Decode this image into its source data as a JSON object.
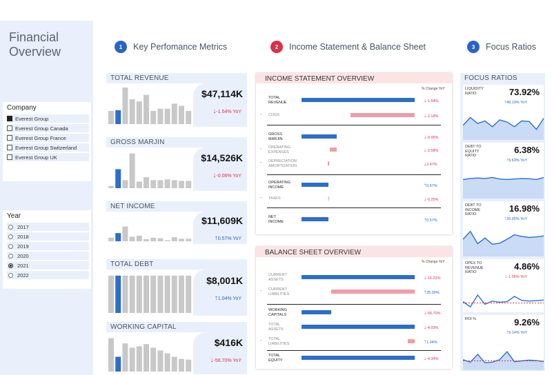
{
  "colors": {
    "accent_blue": "#2d6dcb",
    "accent_pink": "#ee9ea7",
    "negative": "#d9304a",
    "positive": "#2563c0",
    "panel_bg": "#e9f0fb",
    "badge_blue": "#2a63c6",
    "badge_red": "#d8314b"
  },
  "app": {
    "title_line1": "Financial",
    "title_line2": "Overview"
  },
  "company_slicer": {
    "title": "Company",
    "options": [
      {
        "label": "Everest Group",
        "checked": true
      },
      {
        "label": "Everest Group Canada",
        "checked": false
      },
      {
        "label": "Everest Group France",
        "checked": false
      },
      {
        "label": "Everest Group Switzerland",
        "checked": false
      },
      {
        "label": "Everest Group UK",
        "checked": false
      }
    ]
  },
  "year_slicer": {
    "title": "Year",
    "options": [
      {
        "label": "2017",
        "selected": false
      },
      {
        "label": "2018",
        "selected": false
      },
      {
        "label": "2019",
        "selected": false
      },
      {
        "label": "2020",
        "selected": false
      },
      {
        "label": "2021",
        "selected": true
      },
      {
        "label": "2022",
        "selected": false
      }
    ]
  },
  "sections": [
    {
      "number": "1",
      "title": "Key Perfomance Metrics",
      "color": "#2a63c6"
    },
    {
      "number": "2",
      "title": "Income Statement & Balance Sheet",
      "color": "#d8314b"
    },
    {
      "number": "3",
      "title": "Focus Ratios",
      "color": "#2a63c6"
    }
  ],
  "kpis": [
    {
      "title": "TOTAL REVENUE",
      "value": "$47,114K",
      "yoy": "-1.54% YoY",
      "direction": "down",
      "highlight_index": 1,
      "bars": [
        0.36,
        0.38,
        1.0,
        0.68,
        0.62,
        0.8,
        0.36,
        0.42,
        0.42,
        0.56,
        0.5,
        0.36
      ]
    },
    {
      "title": "GROSS MARJIN",
      "value": "$14,526K",
      "yoy": "-0.06% YoY",
      "direction": "down",
      "highlight_index": 1,
      "bars": [
        0.06,
        0.52,
        0.22,
        0.95,
        0.18,
        0.3,
        0.22,
        0.22,
        0.24,
        0.22,
        0.2,
        0.2
      ]
    },
    {
      "title": "NET INCOME",
      "value": "$11,609K",
      "yoy": "0.57% YoY",
      "direction": "up",
      "highlight_index": 1,
      "bars": [
        0.14,
        0.32,
        0.58,
        0.18,
        0.22,
        0.08,
        0.14,
        0.12,
        0.04,
        0.16,
        0.1,
        0.1
      ]
    },
    {
      "title": "TOTAL DEBT",
      "value": "$8,001K",
      "yoy": "1.04% YoY",
      "direction": "up",
      "highlight_index": 1,
      "bars": [
        0.95,
        0.95,
        0.95,
        0.95,
        0.95,
        0.95,
        0.95,
        0.95,
        0.95,
        0.95,
        0.95,
        0.95
      ]
    },
    {
      "title": "WORKING CAPITAL",
      "value": "$416K",
      "yoy": "-56.70% YoY",
      "direction": "down",
      "highlight_index": 1,
      "bars": [
        0.95,
        0.42,
        0.8,
        0.68,
        0.72,
        0.78,
        0.68,
        0.6,
        0.52,
        0.42,
        0.36,
        0.34
      ]
    }
  ],
  "income_statement": {
    "title": "INCOME STATEMENT OVERVIEW",
    "pct_header": "% Change YoY",
    "rows": [
      {
        "label_lines": [
          "TOTAL",
          "REVENUE"
        ],
        "sub": false,
        "dash": false,
        "bar_color": "blue",
        "bar_start": 0.0,
        "bar_end": 1.0,
        "pct": "-1.54%",
        "direction": "down"
      },
      {
        "label_lines": [
          "COGS"
        ],
        "sub": true,
        "dash": true,
        "bar_color": "pink",
        "bar_start": 0.43,
        "bar_end": 1.0,
        "pct": "-2.18%",
        "direction": "down"
      },
      {
        "label_lines": [
          "GROSS",
          "MARJIN"
        ],
        "sub": false,
        "dash": false,
        "bar_color": "blue",
        "bar_start": 0.0,
        "bar_end": 0.31,
        "pct": "-0.06%",
        "direction": "down"
      },
      {
        "label_lines": [
          "OPERATING",
          "EXPENSES"
        ],
        "sub": true,
        "dash": true,
        "bar_color": "pink",
        "bar_start": 0.25,
        "bar_end": 0.31,
        "pct": "-2.58%",
        "direction": "down"
      },
      {
        "label_lines": [
          "DEPRECIATION",
          "AMORTIZATION"
        ],
        "sub": true,
        "dash": true,
        "bar_color": "pink",
        "bar_start": 0.23,
        "bar_end": 0.245,
        "pct": "2.47%",
        "direction": "down"
      },
      {
        "label_lines": [
          "OPERATING",
          "INCOME"
        ],
        "sub": false,
        "dash": false,
        "bar_color": "blue",
        "bar_start": 0.0,
        "bar_end": 0.24,
        "pct": "0.57%",
        "direction": "up"
      },
      {
        "label_lines": [
          "TAXES"
        ],
        "sub": true,
        "dash": true,
        "bar_color": "pink",
        "bar_start": 0.238,
        "bar_end": 0.243,
        "pct": "-0.25%",
        "direction": "down"
      },
      {
        "label_lines": [
          "NET",
          "INCOME"
        ],
        "sub": false,
        "dash": false,
        "bar_color": "blue",
        "bar_start": 0.0,
        "bar_end": 0.24,
        "pct": "0.57%",
        "direction": "up"
      }
    ]
  },
  "balance_sheet": {
    "title": "BALANCE SHEET OVERVIEW",
    "pct_header": "% Change YoY",
    "rows": [
      {
        "label_lines": [
          "CURRENT",
          "ASSETS"
        ],
        "sub": true,
        "dash": false,
        "bar_color": "blue",
        "bar_start": 0.0,
        "bar_end": 1.0,
        "pct": "-16.22%",
        "direction": "down"
      },
      {
        "label_lines": [
          "CURRENT",
          "LIABILITIES"
        ],
        "sub": true,
        "dash": true,
        "bar_color": "pink",
        "bar_start": 0.26,
        "bar_end": 1.0,
        "pct": "25.00%",
        "direction": "up"
      },
      {
        "label_lines": [
          "WORKING",
          "CAPITALS"
        ],
        "sub": false,
        "dash": false,
        "bar_color": "blue",
        "bar_start": 0.0,
        "bar_end": 0.26,
        "pct": "-56.70%",
        "direction": "down"
      },
      {
        "label_lines": [
          "TOTAL",
          "ASSETS"
        ],
        "sub": true,
        "dash": false,
        "bar_color": "blue",
        "bar_start": 0.0,
        "bar_end": 1.0,
        "pct": "-4.03%",
        "direction": "down"
      },
      {
        "label_lines": [
          "TOTAL",
          "LIABILITIES"
        ],
        "sub": true,
        "dash": true,
        "bar_color": "pink",
        "bar_start": 0.94,
        "bar_end": 1.0,
        "pct": "1.04%",
        "direction": "up"
      },
      {
        "label_lines": [
          "TOTAL",
          "EQUITY"
        ],
        "sub": false,
        "dash": false,
        "bar_color": "blue",
        "bar_start": 0.0,
        "bar_end": 1.0,
        "pct": "-4.34%",
        "direction": "down"
      }
    ]
  },
  "focus_ratios": {
    "title": "FOCUS RATIOS",
    "cards": [
      {
        "label_lines": [
          "LIQUIDITY",
          "RATIO"
        ],
        "value": "73.92%",
        "yoy": "49.19% YoY",
        "direction": "up",
        "style": "area",
        "points": [
          0.45,
          0.75,
          0.52,
          0.62,
          0.4,
          0.66,
          0.58,
          0.4,
          0.62,
          0.6,
          0.3,
          0.72
        ]
      },
      {
        "label_lines": [
          "DEBT TO",
          "EQUITY",
          "RATIO"
        ],
        "value": "6.38%",
        "yoy": "5.63% YoY",
        "direction": "up",
        "style": "area",
        "points": [
          0.62,
          0.66,
          0.68,
          0.66,
          0.7,
          0.64,
          0.62,
          0.64,
          0.66,
          0.65,
          0.62,
          0.7
        ]
      },
      {
        "label_lines": [
          "DEBT TO",
          "INCOME",
          "RATIO"
        ],
        "value": "16.98%",
        "yoy": "26.95% YoY",
        "direction": "up",
        "style": "area",
        "points": [
          0.55,
          0.85,
          0.38,
          0.6,
          0.36,
          0.4,
          0.55,
          0.72,
          0.66,
          0.62,
          0.64,
          0.68
        ]
      },
      {
        "label_lines": [
          "OPEX TO",
          "REVENUE",
          "RATIO"
        ],
        "value": "4.86%",
        "yoy": "-1.06% YoY",
        "direction": "down",
        "style": "line",
        "points": [
          0.3,
          0.1,
          0.55,
          0.2,
          0.32,
          0.28,
          0.3,
          0.5,
          0.35,
          0.32,
          0.34,
          0.36
        ]
      },
      {
        "label_lines": [
          "ROI %"
        ],
        "value": "9.26%",
        "yoy": "5.14% YoY",
        "direction": "up",
        "style": "area",
        "points": [
          0.3,
          0.2,
          0.5,
          0.18,
          0.2,
          0.3,
          0.6,
          0.22,
          0.25,
          0.28,
          0.26,
          0.22
        ]
      }
    ]
  }
}
